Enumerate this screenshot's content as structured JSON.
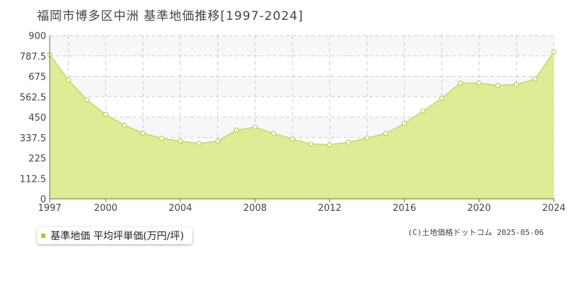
{
  "title": "福岡市博多区中洲 基準地価推移[1997-2024]",
  "legend": {
    "label": "基準地価 平均坪単価(万円/坪)"
  },
  "copyright": "(C)土地価格ドットコム 2025-05-06",
  "colors": {
    "fill": "#dbeb8f",
    "line": "#c3dd55",
    "marker": "#b7d43f",
    "swatch": "#a6c92e",
    "grid": "#cccccc"
  },
  "chart_data": {
    "type": "area",
    "x": [
      1997,
      1998,
      1999,
      2000,
      2001,
      2002,
      2003,
      2004,
      2005,
      2006,
      2007,
      2008,
      2009,
      2010,
      2011,
      2012,
      2013,
      2014,
      2015,
      2016,
      2017,
      2018,
      2019,
      2020,
      2021,
      2022,
      2023,
      2024
    ],
    "series": [
      {
        "name": "基準地価 平均坪単価(万円/坪)",
        "values": [
          795,
          655,
          545,
          465,
          405,
          362,
          333,
          318,
          305,
          318,
          378,
          395,
          360,
          330,
          302,
          298,
          312,
          335,
          360,
          415,
          485,
          555,
          638,
          638,
          625,
          630,
          660,
          810
        ]
      }
    ],
    "xlim": [
      1997,
      2024
    ],
    "ylim": [
      0,
      900
    ],
    "x_tick_labels": [
      "1997",
      "2000",
      "2004",
      "2008",
      "2012",
      "2016",
      "2020",
      "2024"
    ],
    "y_tick_labels": [
      "0",
      "112.5",
      "225",
      "337.5",
      "450",
      "562.5",
      "675",
      "787.5",
      "900"
    ],
    "grid": true
  }
}
